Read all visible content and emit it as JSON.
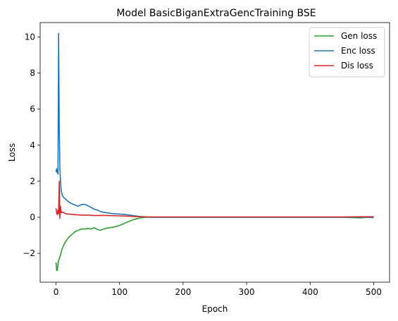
{
  "chart_data": {
    "type": "line",
    "title": "Model BasicBiganExtraGencTraining BSE",
    "xlabel": "Epoch",
    "ylabel": "Loss",
    "xlim": [
      -25,
      525
    ],
    "ylim": [
      -3.6,
      10.8
    ],
    "xticks": [
      0,
      100,
      200,
      300,
      400,
      500
    ],
    "yticks": [
      -2,
      0,
      2,
      4,
      6,
      8,
      10
    ],
    "grid": false,
    "legend_position": "top-right",
    "series": [
      {
        "name": "Gen loss",
        "color": "#2ca02c",
        "x": [
          0,
          1,
          2,
          3,
          4,
          5,
          7,
          9,
          12,
          15,
          20,
          25,
          30,
          35,
          40,
          45,
          50,
          55,
          60,
          65,
          70,
          75,
          80,
          90,
          100,
          110,
          120,
          130,
          140,
          150,
          200,
          250,
          300,
          350,
          400,
          450,
          480,
          490,
          500
        ],
        "y": [
          -2.5,
          -2.95,
          -2.95,
          -2.6,
          -2.4,
          -2.3,
          -2.1,
          -1.8,
          -1.55,
          -1.35,
          -1.1,
          -0.95,
          -0.8,
          -0.72,
          -0.65,
          -0.65,
          -0.62,
          -0.65,
          -0.58,
          -0.68,
          -0.72,
          -0.65,
          -0.6,
          -0.55,
          -0.45,
          -0.3,
          -0.15,
          -0.05,
          0.0,
          0.0,
          0.0,
          0.0,
          0.0,
          0.0,
          0.0,
          0.0,
          -0.03,
          0.0,
          -0.02
        ]
      },
      {
        "name": "Enc loss",
        "color": "#1f77b4",
        "x": [
          0,
          1,
          2,
          3,
          4,
          5,
          6,
          7,
          8,
          10,
          12,
          15,
          20,
          25,
          30,
          35,
          40,
          45,
          50,
          55,
          60,
          65,
          70,
          75,
          80,
          90,
          100,
          110,
          120,
          130,
          140,
          150,
          200,
          250,
          300,
          350,
          400,
          450,
          500
        ],
        "y": [
          2.5,
          2.7,
          2.5,
          2.4,
          10.2,
          5.0,
          2.8,
          2.0,
          1.5,
          1.2,
          1.1,
          1.0,
          0.85,
          0.75,
          0.68,
          0.62,
          0.7,
          0.72,
          0.65,
          0.55,
          0.45,
          0.4,
          0.32,
          0.28,
          0.25,
          0.2,
          0.18,
          0.15,
          0.1,
          0.05,
          0.02,
          0.0,
          0.0,
          0.0,
          0.0,
          0.0,
          0.0,
          0.0,
          0.0
        ]
      },
      {
        "name": "Dis loss",
        "color": "#d62728",
        "x": [
          0,
          1,
          2,
          3,
          4,
          5,
          6,
          7,
          8,
          10,
          15,
          20,
          30,
          40,
          50,
          60,
          80,
          100,
          120,
          130,
          150,
          200,
          250,
          300,
          350,
          400,
          450,
          500
        ],
        "y": [
          0.5,
          0.25,
          0.15,
          0.4,
          0.2,
          2.0,
          -0.05,
          0.6,
          0.25,
          0.3,
          0.2,
          0.18,
          0.15,
          0.12,
          0.12,
          0.1,
          0.1,
          0.08,
          0.05,
          0.03,
          0.02,
          0.02,
          0.02,
          0.02,
          0.02,
          0.02,
          0.02,
          0.03
        ]
      }
    ]
  }
}
